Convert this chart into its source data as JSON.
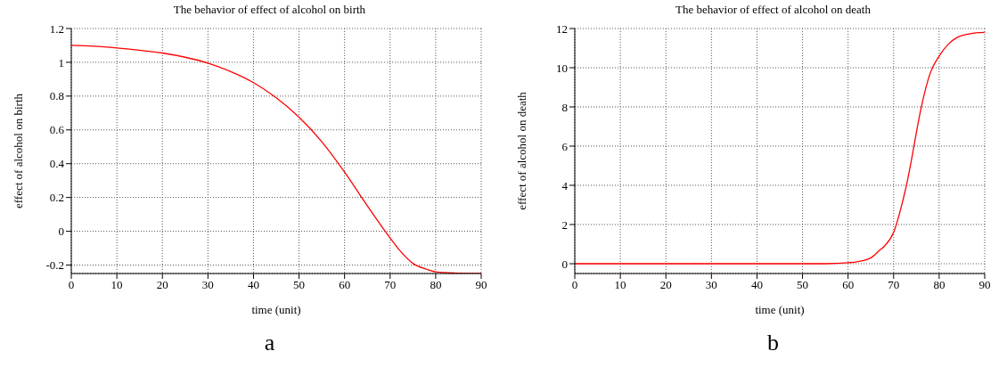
{
  "chart_data": [
    {
      "type": "line",
      "title": "The behavior of effect of alcohol on birth",
      "xlabel": "time (unit)",
      "ylabel": "effect of alcohol on birth",
      "annotations": [
        "a"
      ],
      "x": [
        0,
        5,
        10,
        15,
        20,
        25,
        30,
        35,
        40,
        45,
        50,
        55,
        60,
        65,
        70,
        72,
        75,
        78,
        80,
        85,
        90
      ],
      "series": [
        {
          "color": "#ff0000",
          "values": [
            1.1,
            1.095,
            1.085,
            1.072,
            1.055,
            1.03,
            0.995,
            0.945,
            0.88,
            0.79,
            0.675,
            0.53,
            0.35,
            0.15,
            -0.04,
            -0.11,
            -0.19,
            -0.225,
            -0.24,
            -0.248,
            -0.25
          ]
        }
      ],
      "xlim": [
        0,
        90
      ],
      "xticks": [
        0,
        10,
        20,
        30,
        40,
        50,
        60,
        70,
        80,
        90
      ],
      "ylim": [
        -0.25,
        1.2
      ],
      "yticks": [
        -0.2,
        0,
        0.2,
        0.4,
        0.6,
        0.8,
        1,
        1.2
      ],
      "grid": true,
      "legend": false,
      "marker": "none",
      "line_style": "solid"
    },
    {
      "type": "line",
      "title": "The behavior of effect of alcohol on death",
      "xlabel": "time (unit)",
      "ylabel": "effect of alcohol on death",
      "annotations": [
        "b"
      ],
      "x": [
        0,
        10,
        20,
        30,
        40,
        50,
        55,
        60,
        62,
        65,
        67,
        68,
        70,
        72,
        73,
        74,
        75,
        76,
        77,
        78,
        80,
        82,
        84,
        86,
        88,
        90
      ],
      "series": [
        {
          "color": "#ff0000",
          "values": [
            0,
            0,
            0,
            0,
            0,
            0,
            0,
            0.05,
            0.1,
            0.3,
            0.7,
            0.9,
            1.6,
            3.2,
            4.2,
            5.4,
            6.7,
            7.9,
            8.9,
            9.7,
            10.6,
            11.2,
            11.55,
            11.7,
            11.78,
            11.8
          ]
        }
      ],
      "xlim": [
        0,
        90
      ],
      "xticks": [
        0,
        10,
        20,
        30,
        40,
        50,
        60,
        70,
        80,
        90
      ],
      "ylim": [
        -0.5,
        12
      ],
      "yticks": [
        0,
        2,
        4,
        6,
        8,
        10,
        12
      ],
      "grid": true,
      "legend": false,
      "marker": "none",
      "line_style": "solid"
    }
  ]
}
